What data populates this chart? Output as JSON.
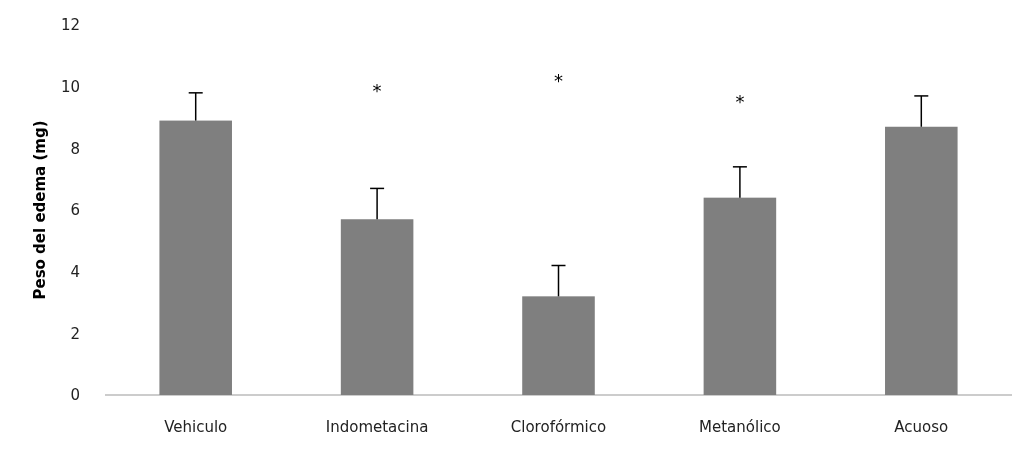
{
  "chart_data": {
    "type": "bar",
    "ylabel": "Peso del edema (mg)",
    "categories": [
      "Vehiculo",
      "Indometacina",
      "Clorofórmico",
      "Metanólico",
      "Acuoso"
    ],
    "values": [
      8.9,
      5.7,
      3.2,
      6.4,
      8.7
    ],
    "errors": [
      [
        8.9,
        9.8
      ],
      [
        5.7,
        6.7
      ],
      [
        3.2,
        4.2
      ],
      [
        6.4,
        7.4
      ],
      [
        8.7,
        9.7
      ]
    ],
    "color": "#7f7f7f",
    "ylim": [
      0,
      12
    ],
    "yticks": [
      0,
      2,
      4,
      6,
      8,
      10,
      12
    ],
    "grid": false,
    "annotations": [
      "*",
      "*",
      "*"
    ]
  }
}
